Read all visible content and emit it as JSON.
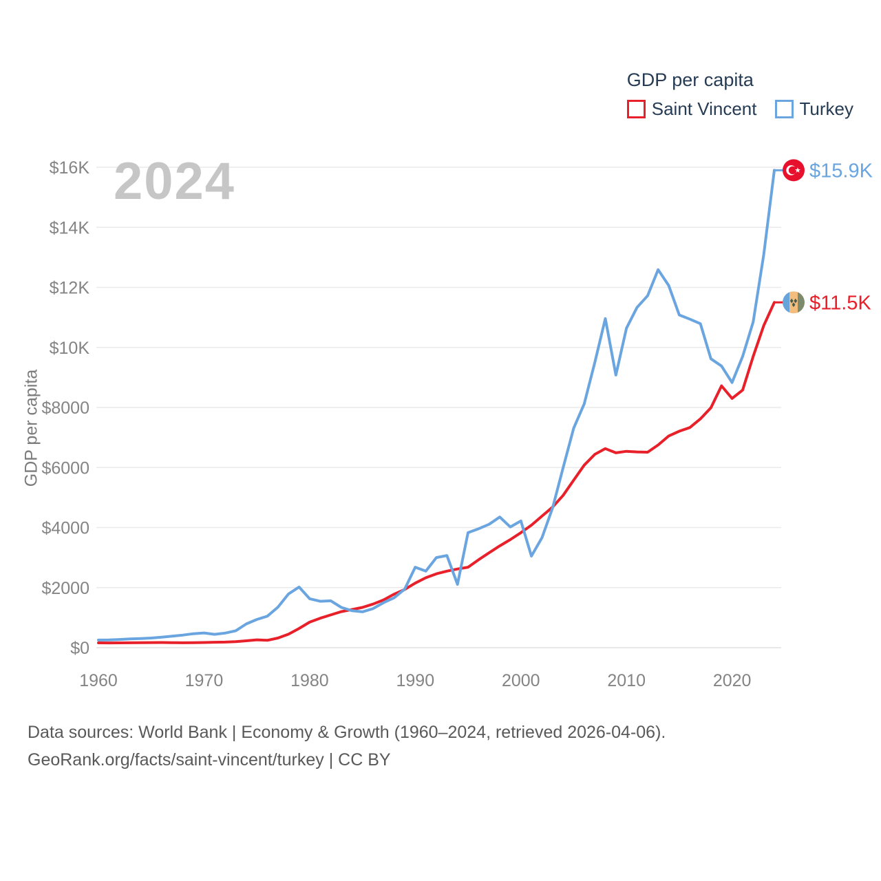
{
  "legend": {
    "title": "GDP per capita",
    "items": [
      {
        "label": "Saint Vincent",
        "color": "#e8202a"
      },
      {
        "label": "Turkey",
        "color": "#6aa5e0"
      }
    ]
  },
  "watermark": "2024",
  "y_axis_title": "GDP per capita",
  "end_labels": [
    {
      "series": "Turkey",
      "text": "$15.9K",
      "flag": "turkey-flag-icon",
      "color": "#6aa5e0"
    },
    {
      "series": "Saint Vincent",
      "text": "$11.5K",
      "flag": "saint-vincent-flag-icon",
      "color": "#e8202a"
    }
  ],
  "flag_colors": {
    "turkey": {
      "bg": "#e8112d",
      "crescent_star": "#ffffff"
    },
    "saint_vincent": {
      "blue": "#67a4da",
      "gold": "#f2bd7d",
      "green": "#7d8a6c",
      "diamonds": "#49594a"
    }
  },
  "source": {
    "line1": "Data sources: World Bank | Economy & Growth (1960–2024, retrieved 2026-04-06).",
    "line2": "GeoRank.org/facts/saint-vincent/turkey | CC BY"
  },
  "chart_data": {
    "type": "line",
    "title": "GDP per capita",
    "xlabel": "",
    "ylabel": "GDP per capita",
    "ylim": [
      0,
      16000
    ],
    "grid": true,
    "legend_position": "top-right",
    "yticks": [
      0,
      2000,
      4000,
      6000,
      8000,
      10000,
      12000,
      14000,
      16000
    ],
    "ytick_labels": [
      "$0",
      "$2000",
      "$4000",
      "$6000",
      "$8000",
      "$10K",
      "$12K",
      "$14K",
      "$16K"
    ],
    "xticks": [
      1960,
      1970,
      1980,
      1990,
      2000,
      2010,
      2020
    ],
    "x": [
      1960,
      1961,
      1962,
      1963,
      1964,
      1965,
      1966,
      1967,
      1968,
      1969,
      1970,
      1971,
      1972,
      1973,
      1974,
      1975,
      1976,
      1977,
      1978,
      1979,
      1980,
      1981,
      1982,
      1983,
      1984,
      1985,
      1986,
      1987,
      1988,
      1989,
      1990,
      1991,
      1992,
      1993,
      1994,
      1995,
      1996,
      1997,
      1998,
      1999,
      2000,
      2001,
      2002,
      2003,
      2004,
      2005,
      2006,
      2007,
      2008,
      2009,
      2010,
      2011,
      2012,
      2013,
      2014,
      2015,
      2016,
      2017,
      2018,
      2019,
      2020,
      2021,
      2022,
      2023,
      2024
    ],
    "series": [
      {
        "name": "Saint Vincent",
        "color": "#e8202a",
        "final_value_label": "$11.5K",
        "values": [
          160,
          158,
          160,
          162,
          165,
          170,
          172,
          168,
          163,
          166,
          172,
          180,
          186,
          200,
          230,
          262,
          245,
          320,
          450,
          640,
          850,
          980,
          1090,
          1200,
          1270,
          1340,
          1450,
          1590,
          1780,
          1940,
          2150,
          2330,
          2460,
          2550,
          2620,
          2680,
          2930,
          3160,
          3390,
          3600,
          3830,
          4080,
          4380,
          4680,
          5070,
          5580,
          6080,
          6440,
          6630,
          6490,
          6540,
          6520,
          6510,
          6750,
          7050,
          7210,
          7330,
          7620,
          7990,
          8720,
          8300,
          8580,
          9700,
          10730,
          11500
        ]
      },
      {
        "name": "Turkey",
        "color": "#6aa5e0",
        "final_value_label": "$15.9K",
        "values": [
          255,
          260,
          272,
          290,
          302,
          322,
          350,
          382,
          420,
          465,
          490,
          445,
          485,
          565,
          790,
          940,
          1050,
          1350,
          1790,
          2020,
          1630,
          1545,
          1560,
          1340,
          1230,
          1195,
          1300,
          1500,
          1660,
          1950,
          2680,
          2550,
          3000,
          3070,
          2110,
          3830,
          3960,
          4110,
          4350,
          4020,
          4220,
          3050,
          3660,
          4650,
          5990,
          7310,
          8120,
          9500,
          10960,
          9080,
          10640,
          11330,
          11720,
          12590,
          12060,
          11080,
          10940,
          10790,
          9620,
          9380,
          8830,
          9700,
          10850,
          13100,
          15900
        ]
      }
    ]
  }
}
